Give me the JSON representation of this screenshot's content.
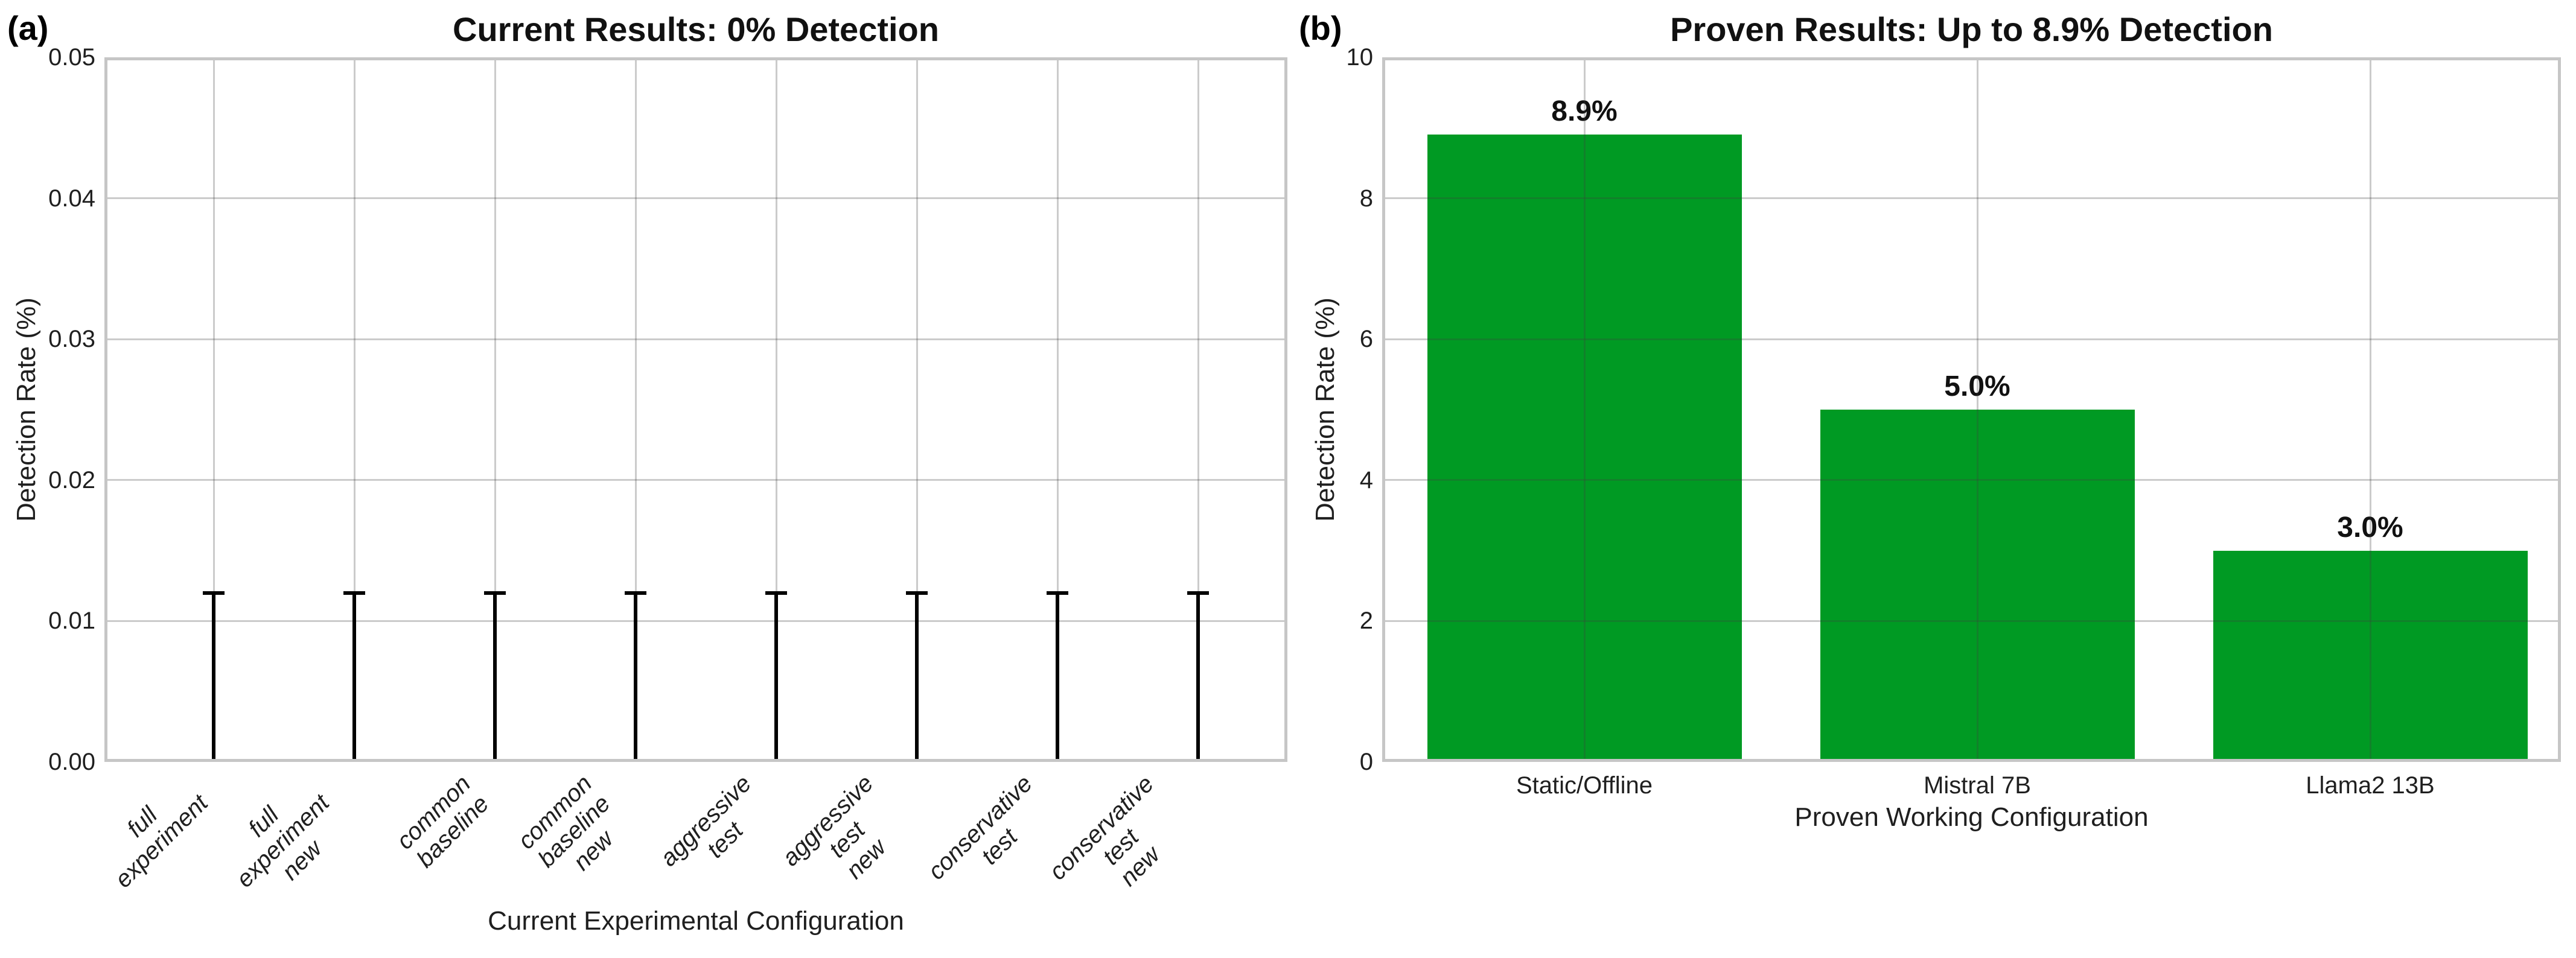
{
  "figure": {
    "panel_a_tag": "(a)",
    "panel_b_tag": "(b)"
  },
  "colors": {
    "bar_green": "#009A23",
    "error_bar": "#000000",
    "grid_line": "#cbcbcb",
    "spine": "#c6c6c6"
  },
  "chart_data": [
    {
      "id": "a",
      "type": "bar",
      "title": "Current Results: 0% Detection",
      "xlabel": "Current Experimental Configuration",
      "ylabel": "Detection Rate (%)",
      "ylim": [
        0,
        0.05
      ],
      "ytick_labels": [
        "0.00",
        "0.01",
        "0.02",
        "0.03",
        "0.04",
        "0.05"
      ],
      "ytick_values": [
        0,
        0.01,
        0.02,
        0.03,
        0.04,
        0.05
      ],
      "categories": [
        "full\nexperiment",
        "full\nexperiment\nnew",
        "common\nbaseline",
        "common\nbaseline\nnew",
        "aggressive\ntest",
        "aggressive\ntest\nnew",
        "conservative\ntest",
        "conservative\ntest\nnew"
      ],
      "values": [
        0,
        0,
        0,
        0,
        0,
        0,
        0,
        0
      ],
      "error_upper": [
        0.012,
        0.012,
        0.012,
        0.012,
        0.012,
        0.012,
        0.012,
        0.012
      ],
      "bar_labels": [],
      "grid": true,
      "legend": null
    },
    {
      "id": "b",
      "type": "bar",
      "title": "Proven Results: Up to 8.9% Detection",
      "xlabel": "Proven Working Configuration",
      "ylabel": "Detection Rate (%)",
      "ylim": [
        0,
        10
      ],
      "ytick_labels": [
        "0",
        "2",
        "4",
        "6",
        "8",
        "10"
      ],
      "ytick_values": [
        0,
        2,
        4,
        6,
        8,
        10
      ],
      "categories": [
        "Static/Offline",
        "Mistral 7B",
        "Llama2 13B"
      ],
      "values": [
        8.9,
        5.0,
        3.0
      ],
      "bar_labels": [
        "8.9%",
        "5.0%",
        "3.0%"
      ],
      "grid": true,
      "legend": null
    }
  ]
}
